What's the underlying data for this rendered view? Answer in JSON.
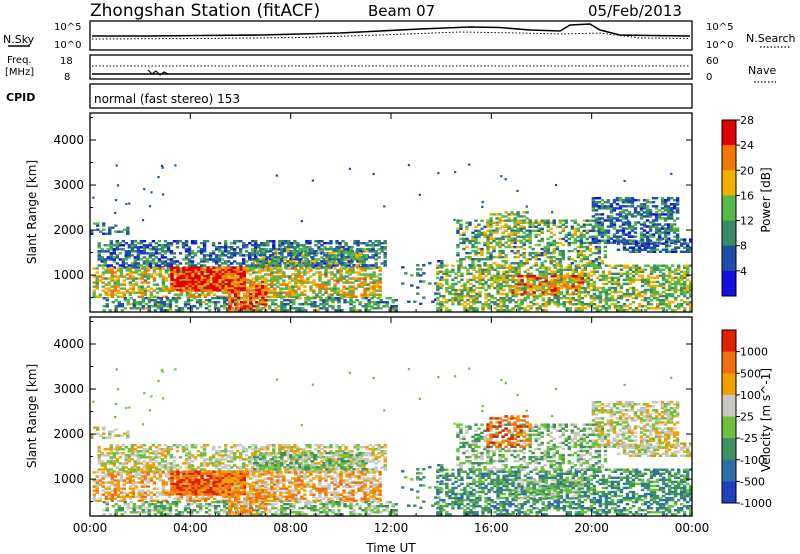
{
  "header": {
    "station": "Zhongshan Station (fitACF)",
    "beam": "Beam 07",
    "date": "05/Feb/2013"
  },
  "top_panels": {
    "nsky_label": "N.Sky",
    "nsky_max": "10^5",
    "nsky_min": "10^0",
    "nsearch_label": "N.Search",
    "freq_label_1": "Freq.",
    "freq_label_2": "[MHz]",
    "freq_max": "18",
    "freq_min": "8",
    "nave_max": "60",
    "nave_min": "0",
    "nave_label": "Nave",
    "cpid_label": "CPID",
    "cpid_value": "normal (fast stereo) 153"
  },
  "chart_data": [
    {
      "type": "heatmap",
      "title": "",
      "xlabel": "",
      "ylabel": "Slant Range [km]",
      "x_ticks": [
        "00:00",
        "04:00",
        "08:00",
        "12:00",
        "16:00",
        "20:00",
        "00:00"
      ],
      "x_range_hours": [
        0,
        24
      ],
      "y_ticks": [
        1000,
        2000,
        3000,
        4000
      ],
      "ylim": [
        180,
        4600
      ],
      "colorbar_label": "Power [dB]",
      "colorbar_ticks": [
        "4",
        "8",
        "12",
        "16",
        "20",
        "24",
        "28"
      ],
      "colors": [
        "#1010e0",
        "#1d4fa8",
        "#3a8a6a",
        "#55b848",
        "#f0b000",
        "#f07800",
        "#e00000"
      ],
      "grid": false
    },
    {
      "type": "heatmap",
      "title": "",
      "xlabel": "Time UT",
      "ylabel": "Slant Range [km]",
      "x_ticks": [
        "00:00",
        "04:00",
        "08:00",
        "12:00",
        "16:00",
        "20:00",
        "00:00"
      ],
      "x_range_hours": [
        0,
        24
      ],
      "y_ticks": [
        1000,
        2000,
        3000,
        4000
      ],
      "ylim": [
        180,
        4600
      ],
      "colorbar_label": "Velocity [m s^-1]",
      "colorbar_ticks": [
        "1000",
        "500",
        "100",
        "25",
        "-25",
        "-100",
        "-500",
        "-1000"
      ],
      "colors": [
        "#2040c0",
        "#2f6fa8",
        "#3f9060",
        "#6cc040",
        "#c8c8c0",
        "#f0a000",
        "#f07010",
        "#e02000"
      ],
      "grid": false
    }
  ]
}
